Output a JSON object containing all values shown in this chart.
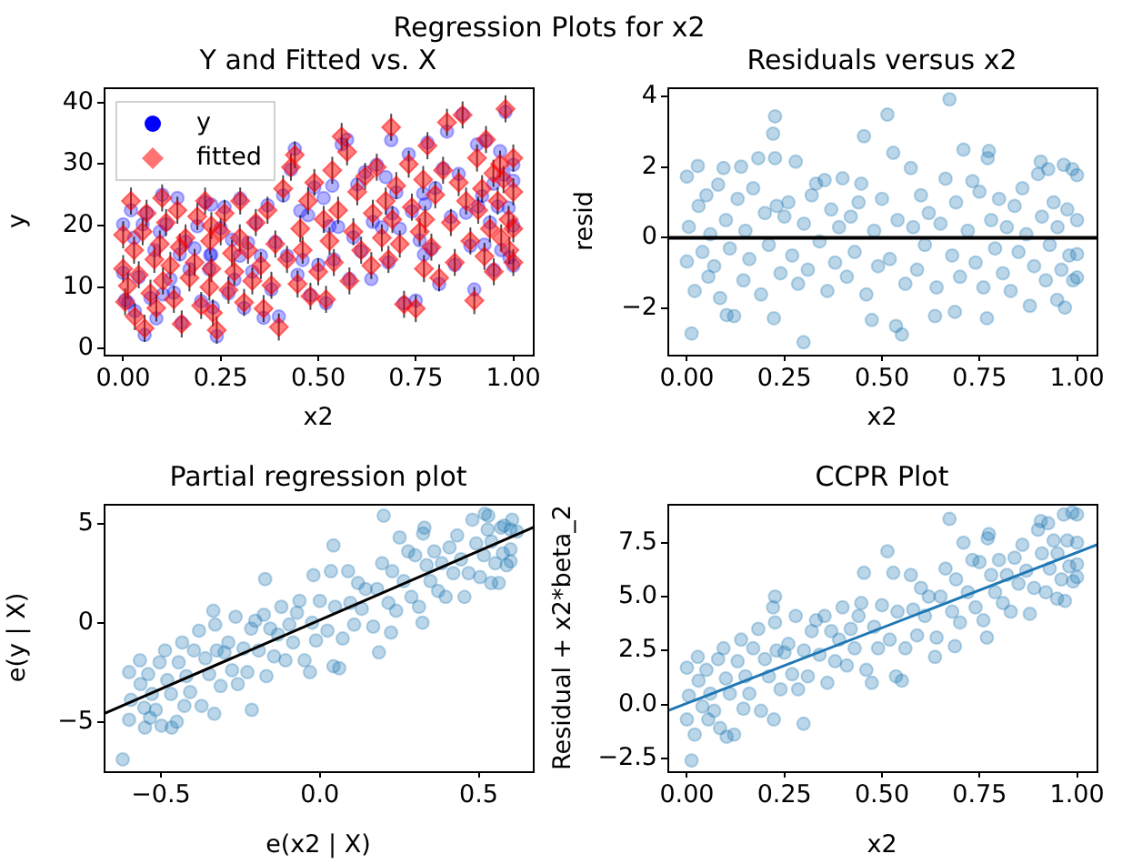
{
  "chart_data": [
    {
      "type": "other",
      "title": "Regression Plots for x2"
    },
    {
      "type": "scatter",
      "title": "Y and Fitted vs. X",
      "xlabel": "x2",
      "ylabel": "y",
      "legend": "top left",
      "xlim": [
        -0.05,
        1.05
      ],
      "ylim": [
        -1,
        42.5
      ],
      "xticks": [
        {
          "value": 0,
          "label": "0.00"
        },
        0.25,
        {
          "value": 0.5,
          "label": "0.50"
        },
        0.75,
        {
          "value": 1,
          "label": "1.00"
        }
      ],
      "yticks": [
        0,
        10,
        20,
        30,
        40
      ],
      "x": [
        0,
        0,
        0.005,
        0.012,
        0.02,
        0.028,
        0.03,
        0.04,
        0.05,
        0.055,
        0.06,
        0.07,
        0.08,
        0.085,
        0.094,
        0.1,
        0.102,
        0.11,
        0.121,
        0.13,
        0.139,
        0.145,
        0.15,
        0.16,
        0.17,
        0.183,
        0.19,
        0.2,
        0.21,
        0.221,
        0.223,
        0.226,
        0.226,
        0.23,
        0.24,
        0.25,
        0.26,
        0.27,
        0.279,
        0.285,
        0.299,
        0.3,
        0.31,
        0.32,
        0.331,
        0.34,
        0.353,
        0.36,
        0.37,
        0.38,
        0.39,
        0.399,
        0.41,
        0.42,
        0.43,
        0.44,
        0.447,
        0.454,
        0.46,
        0.474,
        0.48,
        0.49,
        0.5,
        0.514,
        0.52,
        0.529,
        0.536,
        0.54,
        0.551,
        0.56,
        0.574,
        0.58,
        0.59,
        0.6,
        0.61,
        0.62,
        0.636,
        0.64,
        0.65,
        0.663,
        0.673,
        0.68,
        0.687,
        0.69,
        0.7,
        0.709,
        0.72,
        0.732,
        0.74,
        0.75,
        0.76,
        0.769,
        0.771,
        0.774,
        0.78,
        0.79,
        0.8,
        0.81,
        0.82,
        0.83,
        0.84,
        0.85,
        0.86,
        0.87,
        0.879,
        0.89,
        0.9,
        0.907,
        0.91,
        0.92,
        0.926,
        0.93,
        0.94,
        0.949,
        0.95,
        0.96,
        0.966,
        0.969,
        0.975,
        0.98,
        0.988,
        0.99,
        1,
        1,
        1,
        1
      ],
      "series": [
        {
          "name": "y",
          "type": "scatter",
          "marker": "circle",
          "color": "#0000ff",
          "values": [
            20.2,
            12.3,
            7.9,
            7.5,
            22.5,
            18.0,
            6.1,
            11.6,
            20.2,
            2.2,
            22.1,
            8.2,
            16.0,
            4.9,
            19.0,
            25.0,
            8.8,
            20.2,
            11.3,
            9.1,
            24.5,
            15.3,
            4.2,
            17.4,
            12.9,
            16.3,
            19.9,
            7.7,
            23.8,
            12.9,
            15.2,
            23.4,
            15.3,
            6.7,
            2.0,
            19.6,
            23.0,
            9.0,
            17.7,
            11.2,
            15.1,
            24.4,
            6.6,
            17.2,
            12.5,
            20.4,
            15.1,
            5.0,
            23.3,
            9.6,
            17.3,
            5.2,
            24.9,
            15.1,
            29.1,
            32.5,
            12.0,
            22.4,
            14.4,
            21.7,
            8.7,
            26.2,
            13.6,
            24.5,
            7.4,
            19.9,
            26.5,
            14.5,
            19.8,
            33.2,
            34.0,
            11.3,
            18.1,
            26.7,
            15.8,
            28.7,
            11.3,
            20.6,
            29.9,
            19.7,
            27.9,
            14.0,
            33.9,
            22.0,
            25.4,
            19.5,
            7.4,
            31.6,
            22.3,
            7.8,
            17.6,
            25.2,
            15.3,
            23.5,
            33.5,
            16.2,
            26.1,
            10.5,
            29.3,
            35.3,
            21.4,
            13.6,
            28.4,
            38.1,
            22.1,
            16.7,
            9.6,
            33.2,
            23.1,
            24.8,
            16.9,
            33.8,
            20.5,
            26.8,
            12.8,
            23.1,
            32.1,
            16.0,
            28.3,
            38.5,
            22.9,
            14.8,
            27.3,
            13.5,
            29.9,
            20.0
          ]
        },
        {
          "name": "fitted",
          "type": "scatter",
          "marker": "diamond",
          "color": "#ff0000",
          "values": [
            18.5,
            13.0,
            7.6,
            10.2,
            24.0,
            16.0,
            5.2,
            12.0,
            19.0,
            3.3,
            22.0,
            9.0,
            14.5,
            6.6,
            17.0,
            24.5,
            11.0,
            20.5,
            13.5,
            8.0,
            22.5,
            16.5,
            4.0,
            18.0,
            11.5,
            14.0,
            21.5,
            7.0,
            24.0,
            10.0,
            17.5,
            20.0,
            13.0,
            5.8,
            3.0,
            19.0,
            22.0,
            9.5,
            15.5,
            12.5,
            18.0,
            24.0,
            7.5,
            16.0,
            11.0,
            20.5,
            13.5,
            6.5,
            22.5,
            10.3,
            17.0,
            3.5,
            26.0,
            14.5,
            29.5,
            31.5,
            10.5,
            19.5,
            16.0,
            24.0,
            8.5,
            27.0,
            12.5,
            21.0,
            8.0,
            17.5,
            29.0,
            14.0,
            22.5,
            34.5,
            32.0,
            11.0,
            19.0,
            25.5,
            16.0,
            28.0,
            13.5,
            22.0,
            29.5,
            18.0,
            24.0,
            14.5,
            36.0,
            21.0,
            26.5,
            17.0,
            7.2,
            30.0,
            23.0,
            6.5,
            19.0,
            27.5,
            13.0,
            21.0,
            33.0,
            16.5,
            25.0,
            11.5,
            29.0,
            36.8,
            20.5,
            14.0,
            27.0,
            38.0,
            24.0,
            17.5,
            7.8,
            31.0,
            22.5,
            26.0,
            15.0,
            34.0,
            19.5,
            28.5,
            12.5,
            24.0,
            30.0,
            18.0,
            27.5,
            39.0,
            21.0,
            16.0,
            25.5,
            14.0,
            31.0,
            19.5
          ],
          "errors": [
            2.2,
            2.2,
            2.2,
            2.2,
            2.2,
            2.2,
            2.2,
            2.2,
            2.2,
            2.2,
            2.2,
            2.2,
            2.2,
            2.2,
            2.2,
            2.2,
            2.2,
            2.2,
            2.2,
            2.2,
            2.2,
            2.2,
            2.2,
            2.2,
            2.2,
            2.2,
            2.2,
            2.2,
            2.2,
            2.2,
            2.2,
            2.2,
            2.2,
            2.2,
            2.2,
            2.2,
            2.2,
            2.2,
            2.2,
            2.2,
            2.2,
            2.2,
            2.2,
            2.2,
            2.2,
            2.2,
            2.2,
            2.2,
            2.2,
            2.2,
            2.2,
            2.2,
            2.2,
            2.2,
            2.2,
            2.2,
            2.2,
            2.2,
            2.2,
            2.2,
            2.2,
            2.2,
            2.2,
            2.2,
            2.2,
            2.2,
            2.2,
            2.2,
            2.2,
            2.2,
            2.2,
            2.2,
            2.2,
            2.2,
            2.2,
            2.2,
            2.2,
            2.2,
            2.2,
            2.2,
            2.2,
            2.2,
            2.2,
            2.2,
            2.2,
            2.2,
            2.2,
            2.2,
            2.2,
            2.2,
            2.2,
            2.2,
            2.2,
            2.2,
            2.2,
            2.2,
            2.2,
            2.2,
            2.2,
            2.2,
            2.2,
            2.2,
            2.2,
            2.2,
            2.2,
            2.2,
            2.2,
            2.2,
            2.2,
            2.2,
            2.2,
            2.2,
            2.2,
            2.2,
            2.2,
            2.2,
            2.2,
            2.2,
            2.2,
            2.2,
            2.2,
            2.2,
            2.2,
            2.2,
            2.2,
            2.2
          ]
        }
      ]
    },
    {
      "type": "scatter",
      "title": "Residuals versus x2",
      "xlabel": "x2",
      "ylabel": "resid",
      "xlim": [
        -0.05,
        1.05
      ],
      "ylim": [
        -3.3,
        4.25
      ],
      "xticks": [
        {
          "value": 0,
          "label": "0.00"
        },
        0.25,
        {
          "value": 0.5,
          "label": "0.50"
        },
        0.75,
        {
          "value": 1,
          "label": "1.00"
        }
      ],
      "yticks": [
        {
          "value": -2,
          "label": "−2"
        },
        0,
        2,
        4
      ],
      "ref_lines": [
        {
          "axis": "y",
          "value": 0,
          "color": "#000000"
        }
      ],
      "x": [
        0,
        0,
        0.005,
        0.012,
        0.02,
        0.028,
        0.03,
        0.04,
        0.05,
        0.055,
        0.06,
        0.07,
        0.08,
        0.085,
        0.094,
        0.1,
        0.102,
        0.11,
        0.121,
        0.13,
        0.139,
        0.145,
        0.15,
        0.16,
        0.17,
        0.183,
        0.19,
        0.2,
        0.21,
        0.221,
        0.223,
        0.226,
        0.226,
        0.23,
        0.24,
        0.25,
        0.26,
        0.27,
        0.279,
        0.285,
        0.299,
        0.3,
        0.31,
        0.32,
        0.331,
        0.34,
        0.353,
        0.36,
        0.37,
        0.38,
        0.39,
        0.399,
        0.41,
        0.42,
        0.43,
        0.44,
        0.447,
        0.454,
        0.46,
        0.474,
        0.48,
        0.49,
        0.5,
        0.514,
        0.52,
        0.529,
        0.536,
        0.54,
        0.551,
        0.56,
        0.574,
        0.58,
        0.59,
        0.6,
        0.61,
        0.62,
        0.636,
        0.64,
        0.65,
        0.663,
        0.673,
        0.68,
        0.687,
        0.69,
        0.7,
        0.709,
        0.72,
        0.732,
        0.74,
        0.75,
        0.76,
        0.769,
        0.771,
        0.774,
        0.78,
        0.79,
        0.8,
        0.81,
        0.82,
        0.83,
        0.84,
        0.85,
        0.86,
        0.87,
        0.879,
        0.89,
        0.9,
        0.907,
        0.91,
        0.92,
        0.926,
        0.93,
        0.94,
        0.949,
        0.95,
        0.96,
        0.966,
        0.969,
        0.975,
        0.98,
        0.988,
        0.99,
        1,
        1,
        1,
        1
      ],
      "series": [
        {
          "type": "scatter",
          "marker": "circle",
          "color": "#1f77b4",
          "values": [
            1.73,
            -0.67,
            0.31,
            -2.7,
            -1.5,
            2.03,
            0.9,
            -0.4,
            1.2,
            -1.1,
            0.1,
            -0.8,
            1.5,
            -1.7,
            1.97,
            0.5,
            -2.18,
            -0.3,
            -2.21,
            1.1,
            2.01,
            -1.2,
            0.2,
            -0.6,
            1.4,
            2.25,
            -1.6,
            0.7,
            -0.2,
            2.94,
            -2.27,
            3.43,
            2.25,
            0.9,
            -1.0,
            0.6,
            1.0,
            -0.5,
            2.15,
            -1.3,
            -2.95,
            0.4,
            -0.9,
            1.2,
            1.53,
            -0.1,
            1.63,
            -1.5,
            0.8,
            -0.7,
            0.3,
            1.68,
            -1.1,
            0.6,
            -0.4,
            1.0,
            1.53,
            2.87,
            -1.6,
            -2.32,
            0.2,
            -0.8,
            1.1,
            3.48,
            -0.6,
            2.4,
            -2.49,
            0.5,
            -2.73,
            -1.3,
            1.97,
            0.3,
            -0.9,
            1.2,
            -0.2,
            0.7,
            -2.21,
            -1.4,
            0.4,
            1.67,
            3.91,
            -0.5,
            -2.09,
            1.0,
            -1.1,
            2.49,
            0.2,
            1.6,
            -0.7,
            1.3,
            -1.4,
            -2.27,
            2.25,
            2.45,
            0.5,
            -0.3,
            1.1,
            -1.0,
            0.3,
            -1.5,
            0.9,
            -0.4,
            1.4,
            0.1,
            -1.92,
            -0.8,
            1.8,
            2.15,
            0.6,
            -1.2,
            1.94,
            -0.2,
            1.0,
            -1.75,
            0.3,
            -0.9,
            2.06,
            -1.97,
            0.8,
            -0.5,
            1.94,
            -1.2,
            1.77,
            -0.46,
            -1.12,
            0.5
          ]
        }
      ]
    },
    {
      "type": "scatter",
      "title": "Partial regression plot",
      "xlabel": "e(x2 | X)",
      "ylabel": "e(y | X)",
      "xlim": [
        -0.68,
        0.67
      ],
      "ylim": [
        -7.5,
        6.0
      ],
      "xticks": [
        {
          "value": -0.5,
          "label": "−0.5"
        },
        {
          "value": 0,
          "label": "0.0"
        },
        0.5
      ],
      "yticks": [
        {
          "value": -5,
          "label": "−5"
        },
        0,
        5
      ],
      "series": [
        {
          "type": "scatter",
          "marker": "circle",
          "color": "#1f77b4",
          "x": [
            -0.6,
            -0.6,
            -0.594,
            -0.62,
            -0.55,
            -0.566,
            -0.564,
            -0.552,
            -0.54,
            -0.534,
            -0.528,
            -0.516,
            -0.504,
            -0.498,
            -0.487,
            -0.48,
            -0.466,
            -0.468,
            -0.45,
            -0.444,
            -0.433,
            -0.426,
            -0.42,
            -0.408,
            -0.396,
            -0.38,
            -0.372,
            -0.36,
            -0.348,
            -0.335,
            -0.332,
            -0.172,
            -0.329,
            -0.324,
            -0.312,
            -0.3,
            -0.288,
            -0.276,
            -0.265,
            -0.258,
            -0.214,
            -0.24,
            -0.228,
            -0.216,
            -0.203,
            -0.192,
            -0.176,
            -0.168,
            -0.156,
            -0.144,
            -0.132,
            -0.121,
            -0.108,
            -0.096,
            -0.084,
            -0.072,
            -0.064,
            -0.02,
            -0.048,
            -0.031,
            -0.024,
            -0.012,
            0,
            0.043,
            0.024,
            0.035,
            0.043,
            0.048,
            0.061,
            0.072,
            0.089,
            0.096,
            0.108,
            0.12,
            0.132,
            0.144,
            0.186,
            0.168,
            0.18,
            0.196,
            0.201,
            0.216,
            0.224,
            0.228,
            0.24,
            0.251,
            0.264,
            0.278,
            0.288,
            0.3,
            0.312,
            0.323,
            0.325,
            0.329,
            0.336,
            0.348,
            0.36,
            0.372,
            0.384,
            0.396,
            0.408,
            0.42,
            0.432,
            0.444,
            0.455,
            0.468,
            0.48,
            0.519,
            0.492,
            0.504,
            0.53,
            0.516,
            0.528,
            0.539,
            0.54,
            0.552,
            0.605,
            0.563,
            0.57,
            0.576,
            0.62,
            0.588,
            0.58,
            0.6,
            0.6,
            0.6
          ],
          "values": [
            -2.5,
            -4.9,
            -3.9,
            -6.9,
            -5.3,
            -1.9,
            -3.1,
            -4.3,
            -2.6,
            -4.8,
            -3.6,
            -4.4,
            -2.0,
            -5.2,
            -1.4,
            -2.9,
            -5.3,
            -3.6,
            -5.0,
            -2.0,
            -1.0,
            -4.2,
            -2.7,
            -3.5,
            -1.4,
            -0.4,
            -4.2,
            -1.8,
            -2.6,
            0.6,
            -4.6,
            2.2,
            -0.1,
            -1.4,
            -3.2,
            -1.5,
            -1.0,
            -2.4,
            0.3,
            -3.1,
            -4.4,
            -1.3,
            -2.5,
            -0.3,
            0.1,
            -1.4,
            0.4,
            -2.7,
            -0.3,
            -1.7,
            -0.6,
            0.8,
            -1.9,
            -0.1,
            -1.0,
            0.5,
            1.1,
            2.4,
            -1.9,
            -2.5,
            0.0,
            -0.9,
            1.1,
            3.9,
            -0.4,
            2.6,
            -2.2,
            0.8,
            -2.3,
            -0.8,
            2.6,
            1.0,
            -0.1,
            2.0,
            0.7,
            1.7,
            -1.5,
            -0.2,
            1.7,
            3.0,
            5.4,
            1.0,
            -0.5,
            2.6,
            0.6,
            4.3,
            2.1,
            3.6,
            1.3,
            3.4,
            0.8,
            0.0,
            4.5,
            4.8,
            2.9,
            2.1,
            3.6,
            1.6,
            3.0,
            1.3,
            3.8,
            2.5,
            4.4,
            3.2,
            1.3,
            2.5,
            5.2,
            5.5,
            4.0,
            2.3,
            5.4,
            3.4,
            4.7,
            2.0,
            4.1,
            3.0,
            5.2,
            2.0,
            4.8,
            3.5,
            4.6,
            2.9,
            4.9,
            3.7,
            3.1,
            4.7
          ]
        },
        {
          "type": "line",
          "marker": "none",
          "color": "#000000",
          "x": [
            -0.68,
            0.67
          ],
          "values": [
            -4.6,
            4.8
          ]
        }
      ]
    },
    {
      "type": "scatter",
      "title": "CCPR Plot",
      "xlabel": "x2",
      "ylabel": "Residual + x2*beta_2",
      "xlim": [
        -0.05,
        1.05
      ],
      "ylim": [
        -3.1,
        9.3
      ],
      "xticks": [
        {
          "value": 0,
          "label": "0.00"
        },
        0.25,
        {
          "value": 0.5,
          "label": "0.50"
        },
        0.75,
        {
          "value": 1,
          "label": "1.00"
        }
      ],
      "yticks": [
        {
          "value": -2.5,
          "label": "−2.5"
        },
        {
          "value": 0,
          "label": "0.0"
        },
        2.5,
        {
          "value": 5,
          "label": "5.0"
        },
        7.5
      ],
      "x": [
        0,
        0,
        0.005,
        0.012,
        0.02,
        0.028,
        0.03,
        0.04,
        0.05,
        0.055,
        0.06,
        0.07,
        0.08,
        0.085,
        0.094,
        0.1,
        0.102,
        0.11,
        0.121,
        0.13,
        0.139,
        0.145,
        0.15,
        0.16,
        0.17,
        0.183,
        0.19,
        0.2,
        0.21,
        0.221,
        0.223,
        0.226,
        0.226,
        0.23,
        0.24,
        0.25,
        0.26,
        0.27,
        0.279,
        0.285,
        0.299,
        0.3,
        0.31,
        0.32,
        0.331,
        0.34,
        0.353,
        0.36,
        0.37,
        0.38,
        0.39,
        0.399,
        0.41,
        0.42,
        0.43,
        0.44,
        0.447,
        0.454,
        0.46,
        0.474,
        0.48,
        0.49,
        0.5,
        0.514,
        0.52,
        0.529,
        0.536,
        0.54,
        0.551,
        0.56,
        0.574,
        0.58,
        0.59,
        0.6,
        0.61,
        0.62,
        0.636,
        0.64,
        0.65,
        0.663,
        0.673,
        0.68,
        0.687,
        0.69,
        0.7,
        0.709,
        0.72,
        0.732,
        0.74,
        0.75,
        0.76,
        0.769,
        0.771,
        0.774,
        0.78,
        0.79,
        0.8,
        0.81,
        0.82,
        0.83,
        0.84,
        0.85,
        0.86,
        0.87,
        0.879,
        0.89,
        0.9,
        0.907,
        0.91,
        0.92,
        0.926,
        0.93,
        0.94,
        0.949,
        0.95,
        0.96,
        0.966,
        0.969,
        0.975,
        0.98,
        0.988,
        0.99,
        1,
        1,
        1,
        1
      ],
      "series": [
        {
          "type": "scatter",
          "marker": "circle",
          "color": "#1f77b4",
          "values": [
            1.7,
            -0.7,
            0.4,
            -2.6,
            -1.4,
            2.2,
            1.1,
            -0.1,
            1.6,
            -0.7,
            0.5,
            -0.3,
            2.1,
            -1.1,
            2.6,
            1.2,
            -1.5,
            0.5,
            -1.4,
            2.0,
            3.0,
            -0.2,
            1.3,
            0.5,
            2.6,
            3.5,
            -0.3,
            2.1,
            1.3,
            4.5,
            -0.7,
            5.0,
            3.8,
            2.5,
            0.7,
            2.4,
            2.8,
            1.4,
            4.1,
            0.7,
            -0.9,
            2.5,
            1.3,
            3.4,
            3.9,
            2.3,
            4.1,
            1.0,
            3.4,
            2.0,
            3.0,
            4.5,
            1.8,
            3.5,
            2.6,
            4.1,
            4.7,
            6.1,
            1.6,
            1.0,
            3.6,
            2.6,
            4.6,
            7.1,
            3.0,
            6.1,
            1.3,
            4.3,
            1.1,
            2.6,
            6.0,
            4.4,
            3.2,
            5.4,
            4.1,
            5.0,
            2.2,
            3.1,
            5.0,
            6.3,
            8.6,
            4.3,
            2.7,
            5.8,
            3.8,
            7.5,
            5.2,
            6.7,
            4.5,
            6.6,
            3.9,
            3.1,
            7.7,
            7.9,
            6.0,
            5.2,
            6.7,
            4.7,
            6.0,
            4.3,
            6.8,
            5.6,
            7.4,
            6.2,
            4.2,
            5.4,
            8.1,
            8.5,
            7.0,
            5.2,
            8.4,
            6.3,
            7.6,
            4.9,
            7.0,
            5.8,
            8.8,
            4.8,
            7.6,
            6.4,
            8.9,
            5.7,
            8.8,
            6.5,
            5.9,
            7.5
          ]
        },
        {
          "type": "line",
          "marker": "none",
          "color": "#1f77b4",
          "x": [
            -0.05,
            1.05
          ],
          "values": [
            -0.3,
            7.4
          ]
        }
      ]
    }
  ]
}
